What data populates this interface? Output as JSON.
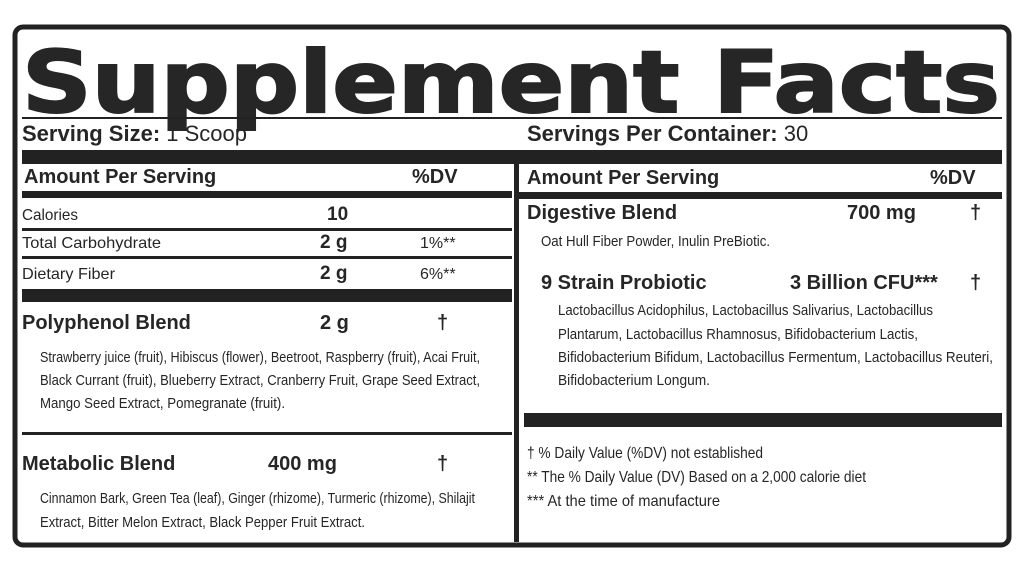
{
  "title": "Supplement Facts",
  "serving_size": {
    "label": "Serving Size:",
    "value": "1 Scoop"
  },
  "servings_per_container": {
    "label": "Servings Per Container:",
    "value": "30"
  },
  "left": {
    "header": {
      "amount": "Amount Per Serving",
      "dv": "%DV"
    },
    "rows": [
      {
        "name": "Calories",
        "amount": "10"
      },
      {
        "name": "Total Carbohydrate",
        "amount": "2 g",
        "dv": "1%**"
      },
      {
        "name": "Dietary Fiber",
        "amount": "2 g",
        "dv": "6%**"
      }
    ],
    "blends": [
      {
        "name": "Polyphenol Blend",
        "amount": "2 g",
        "dv": "†",
        "ingredients": [
          "Strawberry juice (fruit), Hibiscus (flower), Beetroot, Raspberry (fruit), Acai Fruit,",
          "Black Currant (fruit), Blueberry Extract, Cranberry Fruit, Grape Seed Extract,",
          "Mango Seed Extract, Pomegranate (fruit)."
        ]
      },
      {
        "name": "Metabolic Blend",
        "amount": "400 mg",
        "dv": "†",
        "ingredients": [
          "Cinnamon Bark, Green Tea (leaf), Ginger (rhizome), Turmeric (rhizome), Shilajit",
          "Extract, Bitter Melon Extract, Black Pepper Fruit Extract."
        ]
      }
    ]
  },
  "right": {
    "header": {
      "amount": "Amount Per Serving",
      "dv": "%DV"
    },
    "blends": [
      {
        "name": "Digestive Blend",
        "amount": "700 mg",
        "dv": "†",
        "ingredients": [
          "Oat Hull Fiber Powder, Inulin PreBiotic."
        ]
      },
      {
        "name": "9 Strain Probiotic",
        "amount": "3 Billion CFU***",
        "dv": "†",
        "ingredients": [
          "Lactobacillus Acidophilus, Lactobacillus Salivarius, Lactobacillus",
          "Plantarum, Lactobacillus Rhamnosus, Bifidobacterium Lactis,",
          "Bifidobacterium Bifidum, Lactobacillus Fermentum, Lactobacillus Reuteri,",
          "Bifidobacterium Longum."
        ]
      }
    ],
    "footnotes": [
      "† % Daily Value (%DV) not established",
      "** The % Daily Value (DV) Based on a 2,000 calorie diet",
      "*** At the time of manufacture"
    ]
  }
}
